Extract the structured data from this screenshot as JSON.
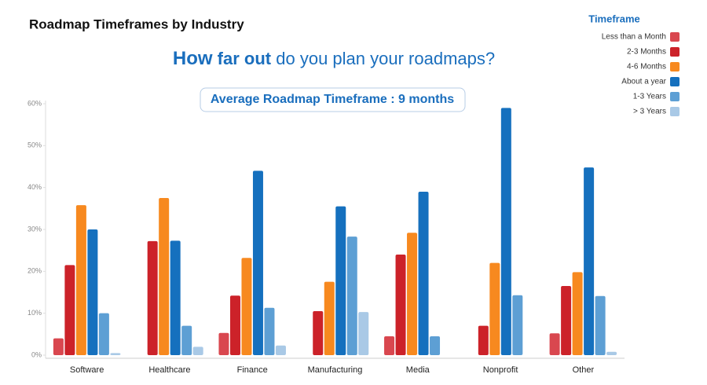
{
  "chart_data": {
    "type": "bar",
    "title": "Roadmap Timeframes by Industry",
    "subtitle_parts": [
      "How",
      "far out",
      "do you plan your roadmaps?"
    ],
    "annotation": "Average Roadmap Timeframe : 9 months",
    "legend_title": "Timeframe",
    "categories": [
      "Software",
      "Healthcare",
      "Finance",
      "Manufacturing",
      "Media",
      "Nonprofit",
      "Other"
    ],
    "series": [
      {
        "name": "Less than a Month",
        "color": "#d9474f",
        "values": [
          4,
          0,
          5.3,
          0,
          4.5,
          0,
          5.2
        ]
      },
      {
        "name": "2-3 Months",
        "color": "#cc2229",
        "values": [
          21.5,
          27.2,
          14.2,
          10.5,
          24,
          7,
          16.5
        ]
      },
      {
        "name": "4-6 Months",
        "color": "#f7891f",
        "values": [
          35.8,
          37.5,
          23.2,
          17.5,
          29.2,
          22,
          19.8
        ]
      },
      {
        "name": "About a year",
        "color": "#1570be",
        "values": [
          30,
          27.3,
          44,
          35.5,
          39,
          59,
          44.8
        ]
      },
      {
        "name": "1-3 Years",
        "color": "#5d9fd4",
        "values": [
          10,
          7,
          11.3,
          28.3,
          4.5,
          14.3,
          14.1
        ]
      },
      {
        "name": "> 3 Years",
        "color": "#a9c9e6",
        "values": [
          0.5,
          2,
          2.3,
          10.3,
          0,
          0,
          0.8
        ]
      }
    ],
    "ylim": [
      0,
      60
    ],
    "yticks": [
      {
        "value": 0,
        "label": "0%"
      },
      {
        "value": 10,
        "label": "10%"
      },
      {
        "value": 20,
        "label": "20%"
      },
      {
        "value": 30,
        "label": "30%"
      },
      {
        "value": 40,
        "label": "40%"
      },
      {
        "value": 50,
        "label": "50%"
      },
      {
        "value": 60,
        "label": "60%"
      }
    ],
    "legend_position": "upper right"
  }
}
